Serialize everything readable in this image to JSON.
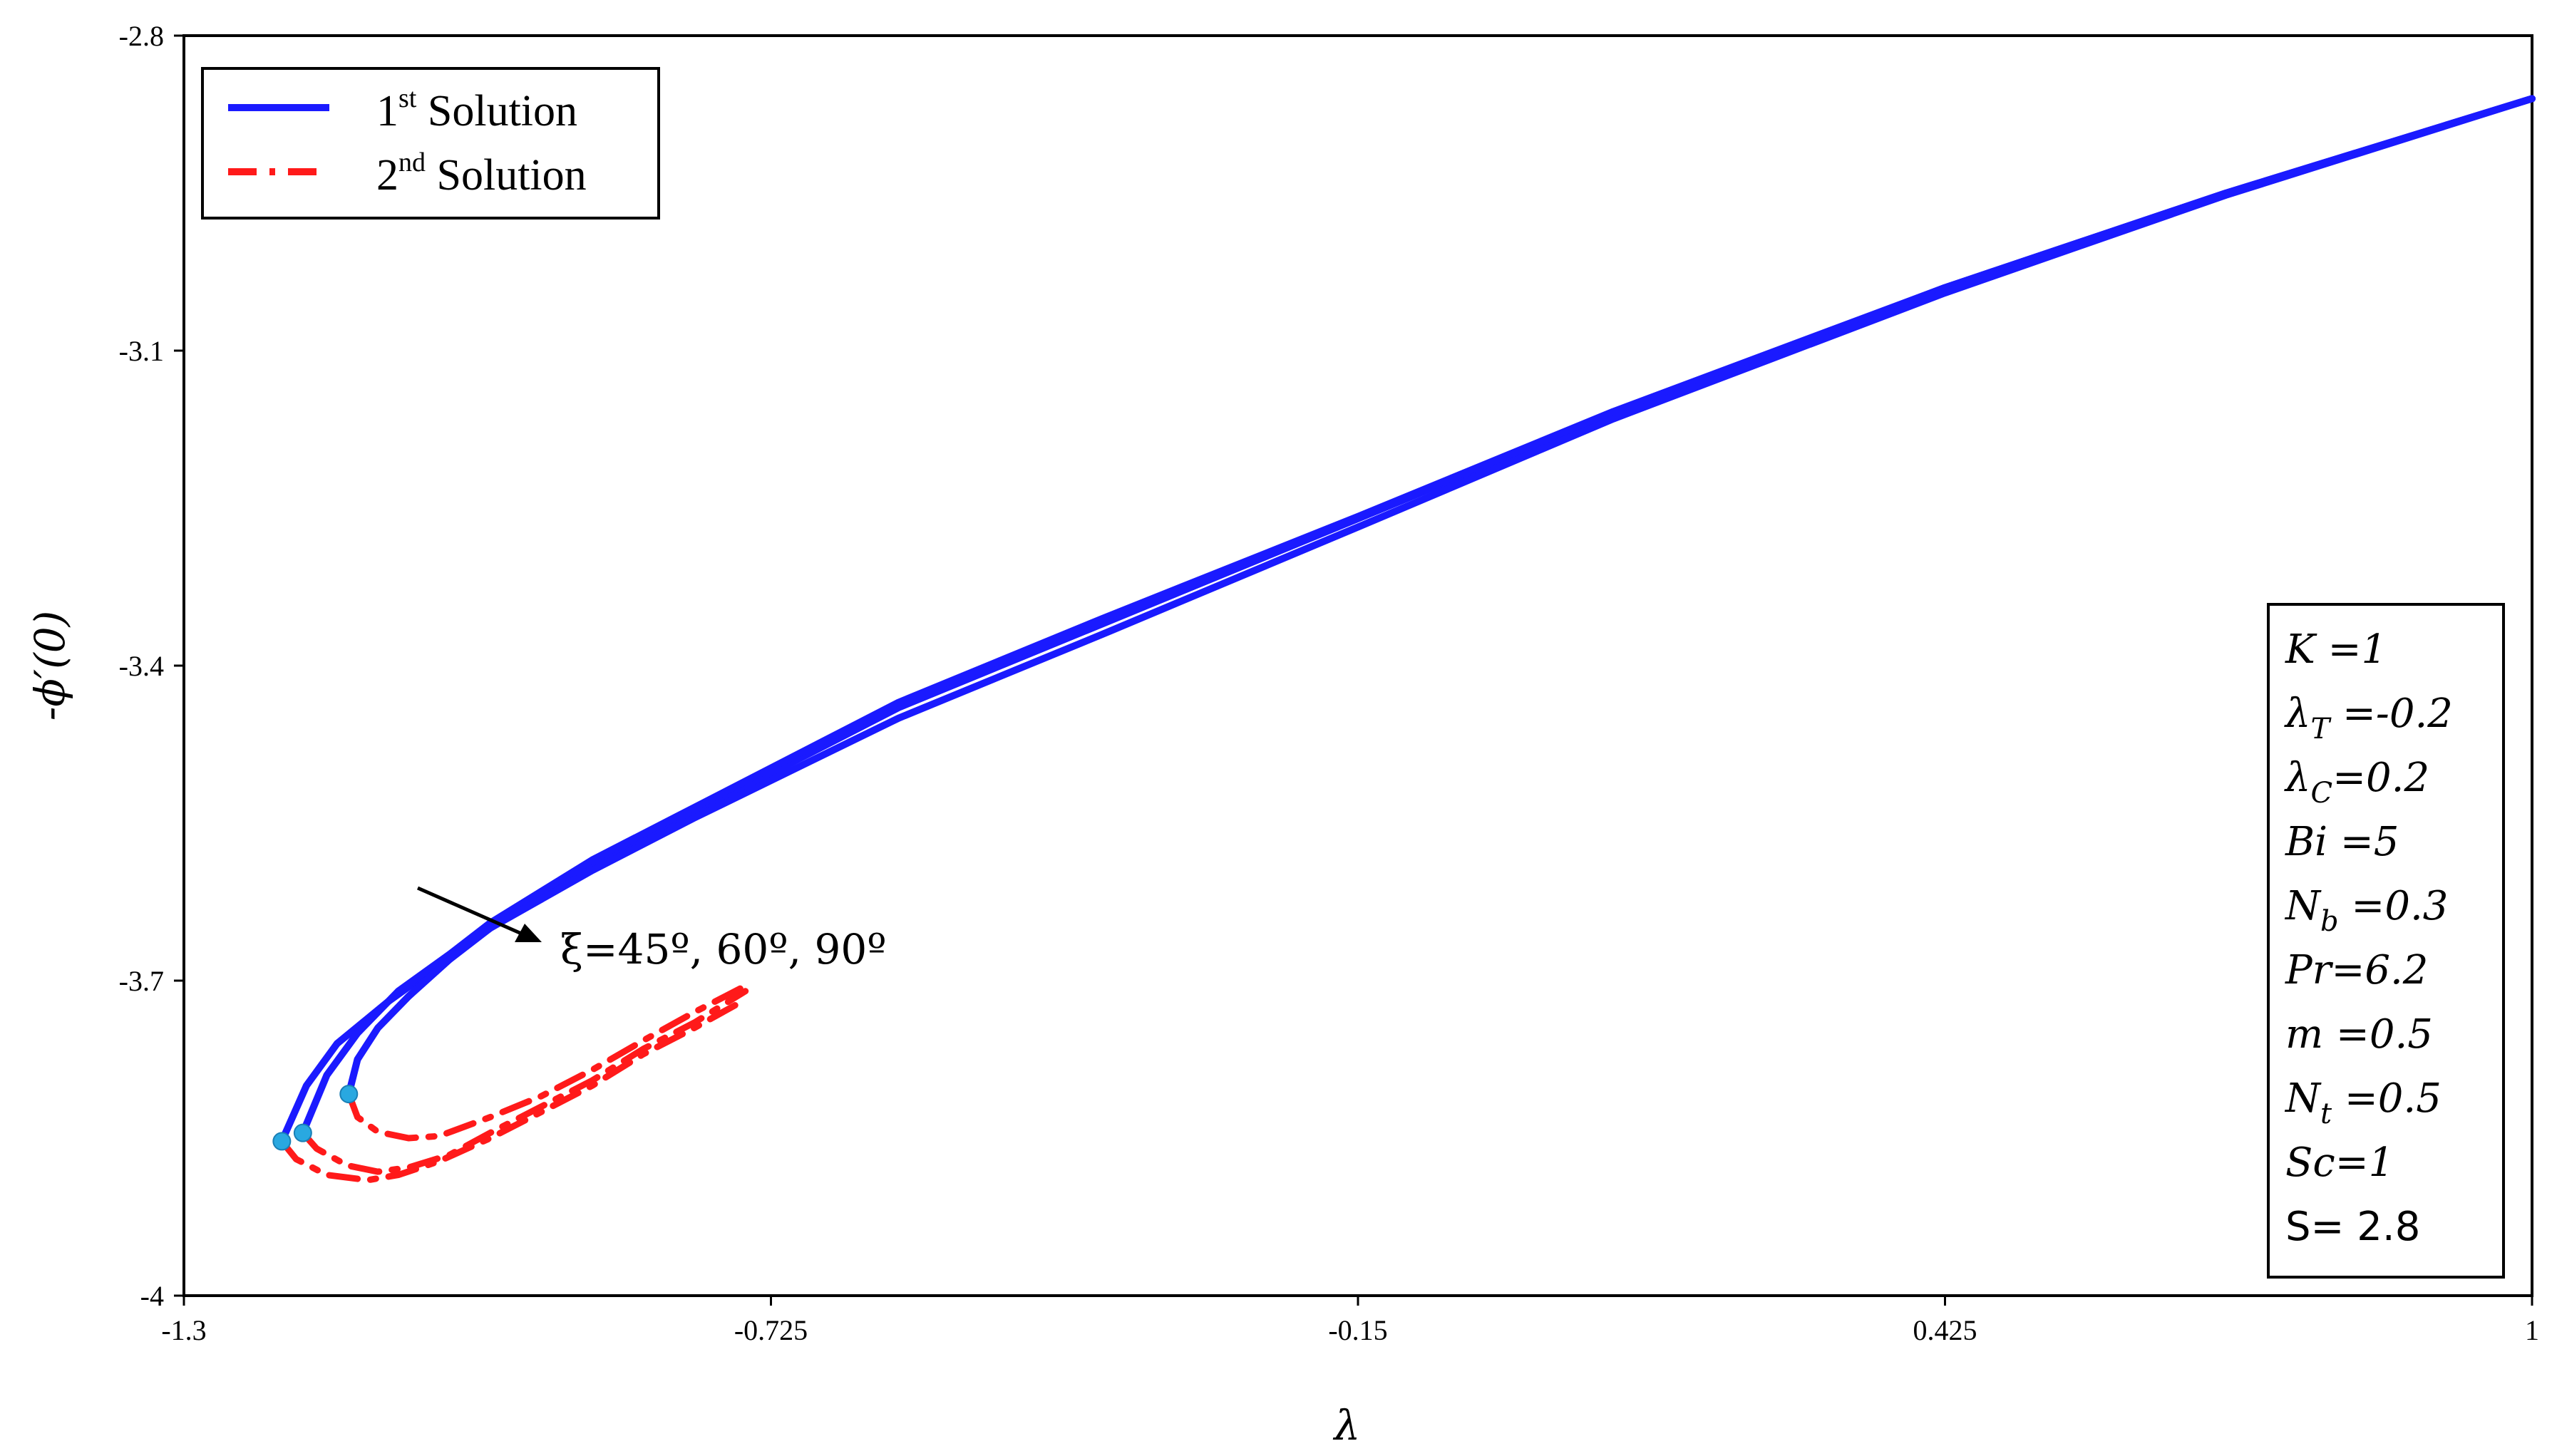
{
  "chart_data": {
    "type": "line",
    "xlabel": "λ",
    "ylabel": "-ϕ′(0)",
    "xlim": [
      -1.3,
      1
    ],
    "ylim": [
      -4,
      -2.8
    ],
    "xticks": [
      "-1.3",
      "-0.725",
      "-0.15",
      "0.425",
      "1"
    ],
    "yticks": [
      "-2.8",
      "-3.1",
      "-3.4",
      "-3.7",
      "-4"
    ],
    "grid": false,
    "legend_position": "top-left",
    "legend": [
      {
        "label": "1",
        "sup": "st",
        "rest": " Solution",
        "color": "#1a1aff",
        "style": "solid"
      },
      {
        "label": "2",
        "sup": "nd",
        "rest": " Solution",
        "color": "#ff1a1a",
        "style": "dash-dot"
      }
    ],
    "annotation": "ξ=45º, 60º, 90º",
    "parameters": [
      "K =1",
      "λT =-0.2",
      "λC=0.2",
      "Bi =5",
      "Nb =0.3",
      "Pr=6.2",
      "m =0.5",
      "Nt =0.5",
      "Sc=1",
      "S= 2.8"
    ],
    "series": [
      {
        "solution": "1st",
        "branch": "upper",
        "x": [
          -1.2041,
          -1.18,
          -1.15,
          -1.1,
          -1.05,
          -1.0,
          -0.9,
          -0.8,
          -0.6,
          -0.4,
          -0.15,
          0.1,
          0.425,
          0.7,
          1.0
        ],
        "y": [
          -3.853,
          -3.8,
          -3.76,
          -3.72,
          -3.685,
          -3.65,
          -3.59,
          -3.54,
          -3.44,
          -3.36,
          -3.26,
          -3.16,
          -3.04,
          -2.95,
          -2.86
        ]
      },
      {
        "solution": "1st",
        "branch": "upper",
        "x": [
          -1.1835,
          -1.16,
          -1.13,
          -1.09,
          -1.04,
          -1.0,
          -0.9,
          -0.8,
          -0.6,
          -0.4,
          -0.15,
          0.1,
          0.425,
          0.7,
          1.0
        ],
        "y": [
          -3.845,
          -3.79,
          -3.75,
          -3.71,
          -3.675,
          -3.645,
          -3.585,
          -3.535,
          -3.435,
          -3.355,
          -3.258,
          -3.158,
          -3.04,
          -2.95,
          -2.86
        ]
      },
      {
        "solution": "1st",
        "branch": "upper",
        "x": [
          -1.1385,
          -1.13,
          -1.11,
          -1.08,
          -1.04,
          -1.0,
          -0.9,
          -0.8,
          -0.6,
          -0.4,
          -0.15,
          0.1,
          0.425,
          0.7,
          1.0
        ],
        "y": [
          -3.808,
          -3.775,
          -3.745,
          -3.715,
          -3.68,
          -3.65,
          -3.595,
          -3.545,
          -3.45,
          -3.37,
          -3.268,
          -3.165,
          -3.045,
          -2.952,
          -2.86
        ]
      },
      {
        "solution": "2nd",
        "branch": "lower",
        "x": [
          -1.2041,
          -1.19,
          -1.16,
          -1.12,
          -1.09,
          -1.05,
          -1.0,
          -0.95,
          -0.9,
          -0.85,
          -0.8,
          -0.75
        ],
        "y": [
          -3.853,
          -3.87,
          -3.885,
          -3.89,
          -3.885,
          -3.872,
          -3.85,
          -3.825,
          -3.8,
          -3.77,
          -3.745,
          -3.718
        ]
      },
      {
        "solution": "2nd",
        "branch": "lower",
        "x": [
          -1.1835,
          -1.17,
          -1.14,
          -1.11,
          -1.08,
          -1.04,
          -1.0,
          -0.95,
          -0.9,
          -0.85,
          -0.8,
          -0.75
        ],
        "y": [
          -3.845,
          -3.86,
          -3.876,
          -3.882,
          -3.878,
          -3.866,
          -3.845,
          -3.82,
          -3.795,
          -3.765,
          -3.74,
          -3.71
        ]
      },
      {
        "solution": "2nd",
        "branch": "lower",
        "x": [
          -1.1385,
          -1.13,
          -1.11,
          -1.08,
          -1.05,
          -1.0,
          -0.95,
          -0.9,
          -0.85,
          -0.8,
          -0.75
        ],
        "y": [
          -3.808,
          -3.83,
          -3.844,
          -3.85,
          -3.848,
          -3.83,
          -3.81,
          -3.785,
          -3.757,
          -3.73,
          -3.705
        ]
      }
    ],
    "critical_points": [
      {
        "x": -1.2041,
        "y": -3.853
      },
      {
        "x": -1.1835,
        "y": -3.845
      },
      {
        "x": -1.1385,
        "y": -3.808
      }
    ]
  }
}
